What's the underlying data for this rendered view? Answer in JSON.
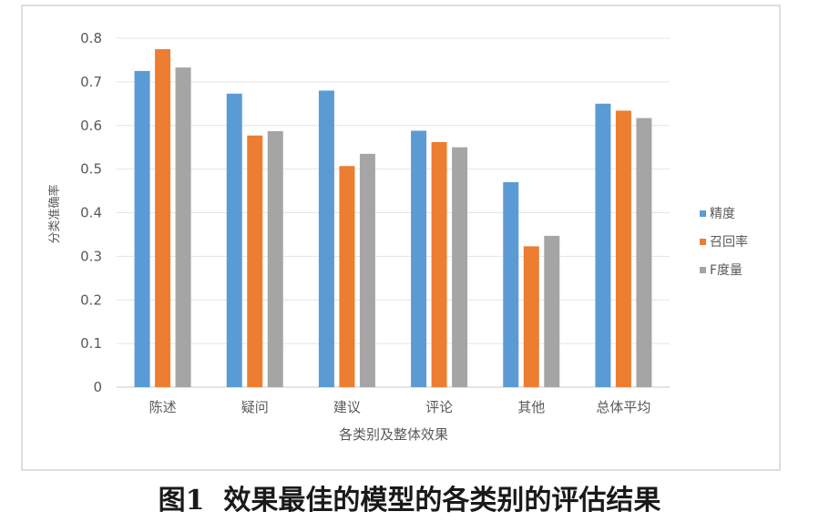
{
  "caption": {
    "label": "图1",
    "text": "效果最佳的模型的各类别的评估结果"
  },
  "chart_data": {
    "type": "bar",
    "title": "",
    "xlabel": "各类别及整体效果",
    "ylabel": "分类准确率",
    "ylim": [
      0,
      0.8
    ],
    "yticks": [
      "0",
      "0.1",
      "0.2",
      "0.3",
      "0.4",
      "0.5",
      "0.6",
      "0.7",
      "0.8"
    ],
    "grid": true,
    "legend_position": "right",
    "categories": [
      "陈述",
      "疑问",
      "建议",
      "评论",
      "其他",
      "总体平均"
    ],
    "series": [
      {
        "name": "精度",
        "color": "#5b9bd5",
        "values": [
          0.725,
          0.673,
          0.68,
          0.588,
          0.47,
          0.65
        ]
      },
      {
        "name": "召回率",
        "color": "#ed7d31",
        "values": [
          0.775,
          0.577,
          0.507,
          0.562,
          0.323,
          0.634
        ]
      },
      {
        "name": "F度量",
        "color": "#a5a5a5",
        "values": [
          0.733,
          0.587,
          0.535,
          0.55,
          0.347,
          0.617
        ]
      }
    ]
  }
}
